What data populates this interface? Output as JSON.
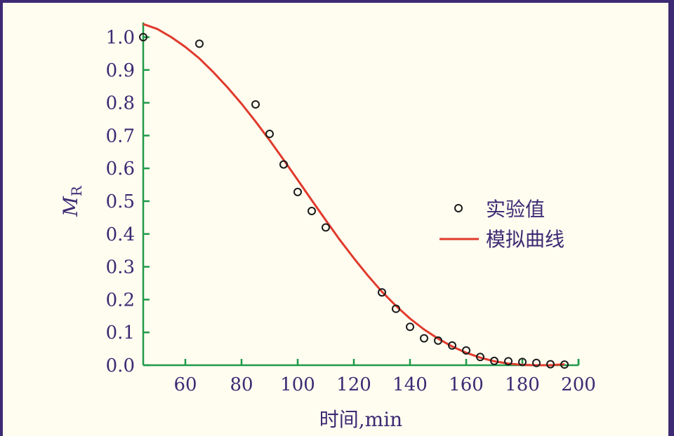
{
  "chart_data": {
    "type": "scatter",
    "title": "",
    "xlabel": "时间,min",
    "ylabel_main": "M",
    "ylabel_sub": "R",
    "xlim": [
      45,
      200
    ],
    "ylim": [
      0,
      1.0
    ],
    "x_ticks": [
      60,
      80,
      100,
      120,
      140,
      160,
      180,
      200
    ],
    "y_ticks": [
      "0.0",
      "0.1",
      "0.2",
      "0.3",
      "0.4",
      "0.5",
      "0.6",
      "0.7",
      "0.8",
      "0.9",
      "1.0"
    ],
    "grid": false,
    "legend_position": "right",
    "series": [
      {
        "name": "实验值",
        "type": "scatter",
        "x": [
          45,
          65,
          85,
          90,
          95,
          100,
          105,
          110,
          130,
          135,
          140,
          145,
          150,
          155,
          160,
          165,
          170,
          175,
          180,
          185,
          190,
          195
        ],
        "y": [
          1.0,
          0.98,
          0.795,
          0.705,
          0.612,
          0.528,
          0.47,
          0.42,
          0.222,
          0.172,
          0.117,
          0.082,
          0.075,
          0.06,
          0.045,
          0.025,
          0.013,
          0.012,
          0.01,
          0.007,
          0.003,
          0.002
        ]
      },
      {
        "name": "模拟曲线",
        "type": "line",
        "x": [
          45,
          50,
          55,
          60,
          65,
          70,
          75,
          80,
          85,
          90,
          95,
          100,
          105,
          110,
          115,
          120,
          125,
          130,
          135,
          140,
          145,
          150,
          155,
          160,
          165,
          170,
          175,
          180,
          185,
          190,
          195
        ],
        "y": [
          1.04,
          1.025,
          1.0,
          0.97,
          0.935,
          0.893,
          0.847,
          0.797,
          0.743,
          0.686,
          0.626,
          0.565,
          0.503,
          0.442,
          0.382,
          0.326,
          0.273,
          0.224,
          0.181,
          0.142,
          0.109,
          0.081,
          0.057,
          0.038,
          0.023,
          0.012,
          0.005,
          0.001,
          0.0,
          0.0,
          0.003
        ]
      }
    ],
    "colors": {
      "axis": "#1f9a4a",
      "text": "#3d2a73",
      "line": "#e03a2c",
      "marker": "#1a1a1a"
    }
  }
}
